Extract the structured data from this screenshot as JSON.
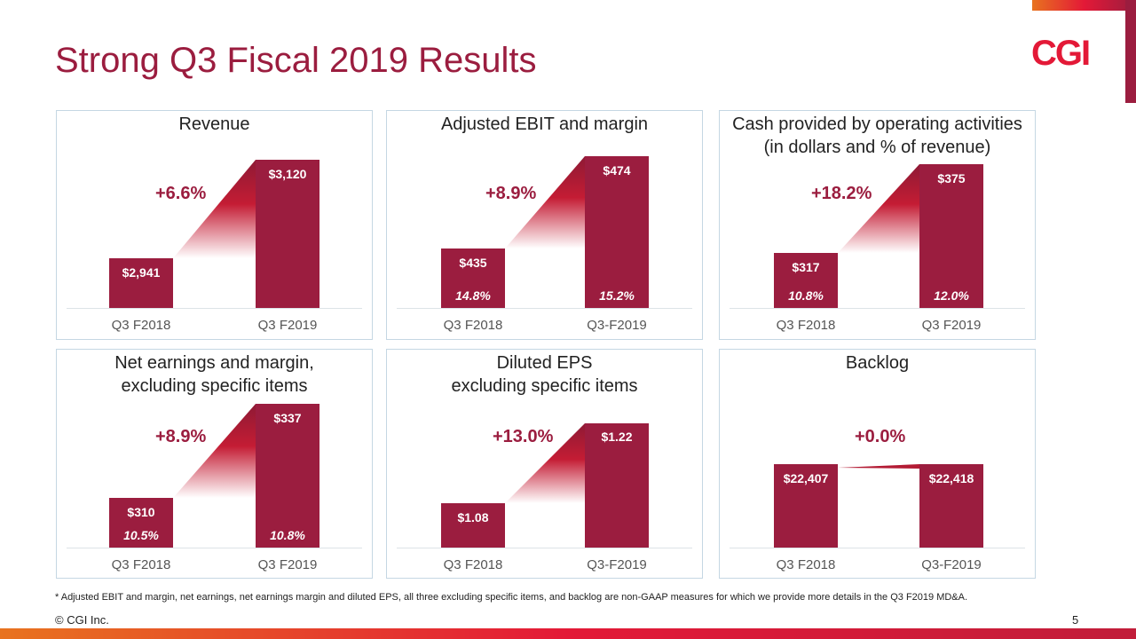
{
  "title": "Strong Q3 Fiscal 2019 Results",
  "logo": "CGI",
  "colors": {
    "bar": "#9b1d3f",
    "title": "#9b1d3f",
    "logo": "#e31937"
  },
  "chart_data": [
    {
      "type": "bar",
      "title": "Revenue",
      "categories": [
        "Q3 F2018",
        "Q3 F2019"
      ],
      "values": [
        2941,
        3120
      ],
      "value_labels": [
        "$2,941",
        "$3,120"
      ],
      "growth": "+6.6%",
      "margins": []
    },
    {
      "type": "bar",
      "title": "Adjusted EBIT and margin",
      "categories": [
        "Q3 F2018",
        "Q3-F2019"
      ],
      "values": [
        435,
        474
      ],
      "value_labels": [
        "$435",
        "$474"
      ],
      "growth": "+8.9%",
      "margins": [
        "14.8%",
        "15.2%"
      ]
    },
    {
      "type": "bar",
      "title": "Cash provided by operating activities\n(in dollars and % of revenue)",
      "categories": [
        "Q3 F2018",
        "Q3 F2019"
      ],
      "values": [
        317,
        375
      ],
      "value_labels": [
        "$317",
        "$375"
      ],
      "growth": "+18.2%",
      "margins": [
        "10.8%",
        "12.0%"
      ]
    },
    {
      "type": "bar",
      "title": "Net earnings and margin,\nexcluding specific items",
      "categories": [
        "Q3 F2018",
        "Q3 F2019"
      ],
      "values": [
        310,
        337
      ],
      "value_labels": [
        "$310",
        "$337"
      ],
      "growth": "+8.9%",
      "margins": [
        "10.5%",
        "10.8%"
      ]
    },
    {
      "type": "bar",
      "title": "Diluted EPS\nexcluding specific items",
      "categories": [
        "Q3 F2018",
        "Q3-F2019"
      ],
      "values": [
        1.08,
        1.22
      ],
      "value_labels": [
        "$1.08",
        "$1.22"
      ],
      "growth": "+13.0%",
      "margins": []
    },
    {
      "type": "bar",
      "title": "Backlog",
      "categories": [
        "Q3 F2018",
        "Q3-F2019"
      ],
      "values": [
        22407,
        22418
      ],
      "value_labels": [
        "$22,407",
        "$22,418"
      ],
      "growth": "+0.0%",
      "margins": []
    }
  ],
  "footnote": "* Adjusted EBIT and margin, net earnings, net earnings margin and diluted EPS, all three excluding specific items, and backlog are non-GAAP measures  for which we provide more details in the Q3 F2019 MD&A.",
  "copyright": "© CGI Inc.",
  "page_number": "5"
}
